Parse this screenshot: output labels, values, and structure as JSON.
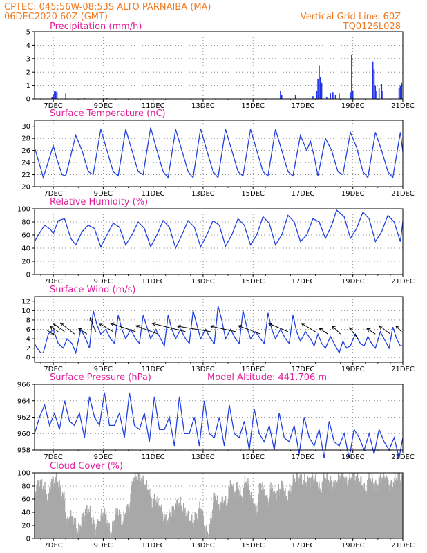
{
  "header": {
    "line1": "CPTEC:   045:56W-08:53S   ALTO PARNAIBA (MA)",
    "line2": "06DEC2020 60Z (GMT)",
    "vertical_grid": "Vertical Grid Line: 60Z",
    "code": "TQ0126L028"
  },
  "x_ticks": [
    "7DEC",
    "9DEC",
    "11DEC",
    "13DEC",
    "15DEC",
    "17DEC",
    "19DEC",
    "21DEC"
  ],
  "colors": {
    "header": "#f07820",
    "title": "#e0209a",
    "line": "#2040e0",
    "bar": "#2030e8",
    "cloud": "#a8a8a8",
    "arrow": "#000000"
  },
  "chart_data": [
    {
      "type": "bar",
      "title": "Precipitation (mm/h)",
      "ylim": [
        0,
        5
      ],
      "yticks": [
        0,
        1,
        2,
        3,
        4,
        5
      ],
      "x_range_days": [
        6.25,
        21.0
      ],
      "bars": [
        {
          "x": 6.95,
          "y": 0.15
        },
        {
          "x": 7.0,
          "y": 0.35
        },
        {
          "x": 7.05,
          "y": 0.6
        },
        {
          "x": 7.1,
          "y": 0.55
        },
        {
          "x": 7.15,
          "y": 0.5
        },
        {
          "x": 7.5,
          "y": 0.4
        },
        {
          "x": 8.25,
          "y": 0.05
        },
        {
          "x": 9.15,
          "y": 0.05
        },
        {
          "x": 16.1,
          "y": 0.6
        },
        {
          "x": 16.15,
          "y": 0.3
        },
        {
          "x": 16.7,
          "y": 0.3
        },
        {
          "x": 17.4,
          "y": 0.2
        },
        {
          "x": 17.55,
          "y": 0.6
        },
        {
          "x": 17.6,
          "y": 1.5
        },
        {
          "x": 17.65,
          "y": 2.5
        },
        {
          "x": 17.7,
          "y": 1.6
        },
        {
          "x": 17.75,
          "y": 1.2
        },
        {
          "x": 17.95,
          "y": 0.15
        },
        {
          "x": 18.1,
          "y": 0.4
        },
        {
          "x": 18.2,
          "y": 0.5
        },
        {
          "x": 18.3,
          "y": 0.3
        },
        {
          "x": 18.45,
          "y": 0.4
        },
        {
          "x": 18.9,
          "y": 0.5
        },
        {
          "x": 18.95,
          "y": 3.3
        },
        {
          "x": 19.0,
          "y": 0.6
        },
        {
          "x": 19.8,
          "y": 2.8
        },
        {
          "x": 19.85,
          "y": 2.2
        },
        {
          "x": 19.9,
          "y": 1.0
        },
        {
          "x": 19.95,
          "y": 0.6
        },
        {
          "x": 20.05,
          "y": 0.8
        },
        {
          "x": 20.15,
          "y": 1.1
        },
        {
          "x": 20.2,
          "y": 0.6
        },
        {
          "x": 20.85,
          "y": 0.8
        },
        {
          "x": 20.9,
          "y": 1.0
        },
        {
          "x": 20.95,
          "y": 1.2
        }
      ]
    },
    {
      "type": "line",
      "title": "Surface Temperature (nC)",
      "ylim": [
        20,
        31
      ],
      "yticks": [
        20,
        22,
        24,
        26,
        28,
        30
      ],
      "x_range_days": [
        6.25,
        21.0
      ],
      "x": [
        6.25,
        6.5,
        6.6,
        6.9,
        7.0,
        7.15,
        7.35,
        7.5,
        7.9,
        8.15,
        8.4,
        8.6,
        8.9,
        9.15,
        9.4,
        9.6,
        9.9,
        10.15,
        10.4,
        10.6,
        10.9,
        11.15,
        11.4,
        11.6,
        11.9,
        12.15,
        12.4,
        12.6,
        12.9,
        13.15,
        13.4,
        13.6,
        13.9,
        14.15,
        14.4,
        14.6,
        14.9,
        15.15,
        15.4,
        15.6,
        15.9,
        16.15,
        16.4,
        16.6,
        16.9,
        17.15,
        17.3,
        17.45,
        17.6,
        17.9,
        18.15,
        18.4,
        18.6,
        18.9,
        19.15,
        19.4,
        19.6,
        19.9,
        20.15,
        20.4,
        20.6,
        20.9,
        21.0
      ],
      "y": [
        26.5,
        23.0,
        21.5,
        25.5,
        26.8,
        24.5,
        22.0,
        21.8,
        28.5,
        26.0,
        22.5,
        22.0,
        29.5,
        26.0,
        22.5,
        21.8,
        29.5,
        26.0,
        22.5,
        22.0,
        29.8,
        26.0,
        22.5,
        21.5,
        29.5,
        26.0,
        22.5,
        21.5,
        29.6,
        26.0,
        22.5,
        21.5,
        29.5,
        26.0,
        22.5,
        21.8,
        29.5,
        26.0,
        22.5,
        21.8,
        29.5,
        26.0,
        22.5,
        21.8,
        28.5,
        26.0,
        27.5,
        25.0,
        21.8,
        28.0,
        26.0,
        22.5,
        22.0,
        29.0,
        26.5,
        22.5,
        21.5,
        29.0,
        26.0,
        22.5,
        21.5,
        29.0,
        25.8
      ]
    },
    {
      "type": "line",
      "title": "Relative Humidity (%)",
      "ylim": [
        0,
        100
      ],
      "yticks": [
        0,
        20,
        40,
        60,
        80,
        100
      ],
      "x_range_days": [
        6.25,
        21.0
      ],
      "x": [
        6.25,
        6.4,
        6.65,
        6.9,
        7.0,
        7.2,
        7.45,
        7.7,
        7.9,
        8.15,
        8.4,
        8.65,
        8.9,
        9.15,
        9.4,
        9.65,
        9.9,
        10.15,
        10.4,
        10.65,
        10.9,
        11.15,
        11.4,
        11.65,
        11.9,
        12.15,
        12.4,
        12.65,
        12.9,
        13.15,
        13.4,
        13.65,
        13.9,
        14.15,
        14.4,
        14.65,
        14.9,
        15.15,
        15.4,
        15.65,
        15.9,
        16.15,
        16.4,
        16.65,
        16.9,
        17.15,
        17.4,
        17.65,
        17.9,
        18.15,
        18.35,
        18.65,
        18.9,
        19.15,
        19.4,
        19.65,
        19.9,
        20.15,
        20.4,
        20.65,
        20.9,
        21.0
      ],
      "y": [
        50,
        60,
        75,
        68,
        62,
        82,
        85,
        55,
        45,
        65,
        75,
        70,
        42,
        60,
        78,
        72,
        45,
        60,
        80,
        70,
        42,
        60,
        82,
        72,
        40,
        60,
        82,
        72,
        42,
        60,
        82,
        75,
        43,
        60,
        85,
        75,
        45,
        60,
        88,
        78,
        45,
        60,
        90,
        80,
        50,
        60,
        85,
        80,
        55,
        75,
        98,
        88,
        55,
        70,
        95,
        85,
        50,
        65,
        90,
        80,
        50,
        80
      ]
    },
    {
      "type": "line",
      "title": "Surface Wind (m/s)",
      "ylim": [
        -1,
        13
      ],
      "yticks": [
        0,
        2,
        4,
        6,
        8,
        10,
        12
      ],
      "x_range_days": [
        6.25,
        21.0
      ],
      "x": [
        6.25,
        6.35,
        6.5,
        6.6,
        6.8,
        7.0,
        7.2,
        7.4,
        7.55,
        7.75,
        7.9,
        8.1,
        8.3,
        8.45,
        8.6,
        8.75,
        8.9,
        9.1,
        9.3,
        9.45,
        9.6,
        9.75,
        9.9,
        10.1,
        10.3,
        10.45,
        10.6,
        10.75,
        10.9,
        11.1,
        11.3,
        11.45,
        11.6,
        11.75,
        11.9,
        12.1,
        12.3,
        12.45,
        12.6,
        12.75,
        12.9,
        13.1,
        13.3,
        13.45,
        13.6,
        13.75,
        13.9,
        14.1,
        14.3,
        14.45,
        14.6,
        14.75,
        14.9,
        15.1,
        15.3,
        15.45,
        15.6,
        15.75,
        15.9,
        16.1,
        16.3,
        16.45,
        16.6,
        16.75,
        16.9,
        17.1,
        17.3,
        17.45,
        17.6,
        17.75,
        17.9,
        18.1,
        18.3,
        18.45,
        18.6,
        18.75,
        18.9,
        19.1,
        19.3,
        19.45,
        19.6,
        19.75,
        19.9,
        20.1,
        20.3,
        20.45,
        20.6,
        20.75,
        20.9,
        21.0
      ],
      "y": [
        3.0,
        2.0,
        1.0,
        1.0,
        5.0,
        6.0,
        3.0,
        2.0,
        4.0,
        3.0,
        1.0,
        6.0,
        4.0,
        2.0,
        10.0,
        7.0,
        5.0,
        6.0,
        4.0,
        3.0,
        9.0,
        6.0,
        4.0,
        6.0,
        4.0,
        3.0,
        9.0,
        6.5,
        4.0,
        6.0,
        4.0,
        2.5,
        9.0,
        6.0,
        4.0,
        6.0,
        4.0,
        3.0,
        10.0,
        7.0,
        4.0,
        6.0,
        4.0,
        3.0,
        11.0,
        8.0,
        4.0,
        6.0,
        4.0,
        3.0,
        10.0,
        6.5,
        4.0,
        5.5,
        4.0,
        3.0,
        9.5,
        6.0,
        4.0,
        6.0,
        4.0,
        3.0,
        9.0,
        5.5,
        3.5,
        5.5,
        4.0,
        2.5,
        5.0,
        3.0,
        2.0,
        4.5,
        2.5,
        1.0,
        3.5,
        2.0,
        2.5,
        5.0,
        3.0,
        2.5,
        4.5,
        3.0,
        2.0,
        5.5,
        3.5,
        2.0,
        6.5,
        4.0,
        2.5,
        2.5
      ],
      "arrows": [
        {
          "x": 6.7,
          "y": 6.0,
          "u": 0.3,
          "v": -0.2
        },
        {
          "x": 7.2,
          "y": 5.5,
          "u": -0.3,
          "v": 0.2
        },
        {
          "x": 7.45,
          "y": 5.5,
          "u": -0.4,
          "v": 0.3
        },
        {
          "x": 7.85,
          "y": 5.0,
          "u": -0.5,
          "v": 0.4
        },
        {
          "x": 8.35,
          "y": 5.0,
          "u": -0.3,
          "v": 0.2
        },
        {
          "x": 8.7,
          "y": 5.5,
          "u": -0.2,
          "v": 0.5
        },
        {
          "x": 9.4,
          "y": 5.5,
          "u": -0.5,
          "v": 0.3
        },
        {
          "x": 10.3,
          "y": 5.5,
          "u": -0.9,
          "v": 0.3
        },
        {
          "x": 11.2,
          "y": 5.0,
          "u": -0.8,
          "v": 0.3
        },
        {
          "x": 12.3,
          "y": 5.5,
          "u": -1.2,
          "v": 0.3
        },
        {
          "x": 13.3,
          "y": 5.5,
          "u": -1.2,
          "v": 0.2
        },
        {
          "x": 14.3,
          "y": 5.5,
          "u": -0.9,
          "v": 0.2
        },
        {
          "x": 15.3,
          "y": 5.0,
          "u": -0.8,
          "v": 0.3
        },
        {
          "x": 16.4,
          "y": 5.5,
          "u": -0.7,
          "v": 0.3
        },
        {
          "x": 17.5,
          "y": 5.5,
          "u": -0.5,
          "v": 0.3
        },
        {
          "x": 18.0,
          "y": 5.0,
          "u": -0.3,
          "v": 0.2
        },
        {
          "x": 18.5,
          "y": 5.0,
          "u": -0.3,
          "v": 0.3
        },
        {
          "x": 19.2,
          "y": 4.0,
          "u": -0.3,
          "v": 0.4
        },
        {
          "x": 19.9,
          "y": 5.0,
          "u": -0.3,
          "v": 0.2
        },
        {
          "x": 20.5,
          "y": 5.0,
          "u": -0.4,
          "v": 0.3
        },
        {
          "x": 20.95,
          "y": 5.5,
          "u": -0.2,
          "v": 0.2
        }
      ]
    },
    {
      "type": "line",
      "title": "Surface Pressure (hPa)",
      "annotation": "Model Altitude: 441.706  m",
      "ylim": [
        958,
        966
      ],
      "yticks": [
        958,
        960,
        962,
        964,
        966
      ],
      "x_range_days": [
        6.25,
        21.0
      ],
      "x": [
        6.25,
        6.45,
        6.65,
        6.85,
        7.05,
        7.25,
        7.45,
        7.65,
        7.85,
        8.05,
        8.25,
        8.45,
        8.65,
        8.85,
        9.05,
        9.25,
        9.45,
        9.65,
        9.85,
        10.05,
        10.25,
        10.45,
        10.65,
        10.85,
        11.05,
        11.25,
        11.45,
        11.65,
        11.85,
        12.05,
        12.25,
        12.45,
        12.65,
        12.85,
        13.05,
        13.25,
        13.45,
        13.65,
        13.85,
        14.05,
        14.25,
        14.45,
        14.65,
        14.85,
        15.05,
        15.25,
        15.45,
        15.65,
        15.85,
        16.05,
        16.25,
        16.45,
        16.65,
        16.85,
        17.05,
        17.25,
        17.45,
        17.65,
        17.85,
        18.05,
        18.25,
        18.45,
        18.65,
        18.85,
        19.05,
        19.25,
        19.45,
        19.65,
        19.85,
        20.05,
        20.25,
        20.45,
        20.65,
        20.85,
        21.0
      ],
      "y": [
        960.0,
        962.0,
        963.5,
        961.0,
        962.5,
        960.5,
        964.0,
        961.5,
        961.0,
        962.5,
        959.5,
        964.5,
        962.0,
        961.0,
        965.0,
        961.0,
        961.0,
        962.5,
        959.5,
        965.0,
        961.0,
        960.5,
        962.5,
        959.0,
        964.5,
        960.5,
        960.5,
        962.0,
        958.5,
        964.5,
        960.0,
        960.0,
        962.0,
        958.5,
        964.0,
        960.0,
        959.5,
        962.0,
        958.5,
        963.5,
        960.0,
        959.5,
        961.5,
        958.0,
        963.0,
        960.0,
        959.0,
        961.0,
        958.0,
        962.5,
        959.5,
        959.0,
        961.0,
        957.5,
        962.0,
        959.5,
        958.5,
        960.5,
        957.0,
        961.5,
        959.0,
        958.5,
        960.0,
        957.0,
        960.5,
        959.5,
        958.0,
        960.0,
        957.5,
        960.5,
        959.0,
        958.0,
        959.5,
        957.0,
        959.5
      ]
    },
    {
      "type": "bar",
      "title": "Cloud Cover (%)",
      "ylim": [
        0,
        100
      ],
      "yticks": [
        0,
        20,
        40,
        60,
        80,
        100
      ],
      "x_range_days": [
        6.25,
        21.0
      ],
      "profile_x": [
        6.25,
        6.4,
        6.6,
        6.8,
        6.9,
        7.0,
        7.15,
        7.3,
        7.45,
        7.55,
        7.65,
        7.8,
        8.0,
        8.2,
        8.4,
        8.55,
        8.7,
        8.85,
        9.0,
        9.15,
        9.3,
        9.45,
        9.6,
        9.75,
        9.9,
        10.05,
        10.2,
        10.35,
        10.5,
        10.65,
        10.8,
        10.95,
        11.1,
        11.25,
        11.4,
        11.55,
        11.7,
        11.85,
        12.0,
        12.15,
        12.3,
        12.45,
        12.6,
        12.75,
        12.9,
        13.05,
        13.2,
        13.35,
        13.5,
        13.65,
        13.8,
        13.95,
        14.1,
        14.25,
        14.4,
        14.55,
        14.7,
        14.85,
        15.0,
        15.15,
        15.3,
        15.45,
        15.6,
        15.75,
        15.9,
        16.05,
        16.2,
        16.35,
        16.5,
        16.65,
        16.8,
        16.95,
        17.1,
        17.25,
        17.4,
        17.55,
        17.7,
        17.85,
        18.0,
        18.15,
        18.3,
        18.45,
        18.6,
        18.75,
        18.9,
        19.05,
        19.2,
        19.35,
        19.5,
        19.65,
        19.8,
        19.95,
        20.1,
        20.25,
        20.4,
        20.55,
        20.7,
        20.85,
        21.0
      ],
      "profile_y": [
        70,
        85,
        80,
        60,
        85,
        88,
        90,
        75,
        60,
        20,
        35,
        30,
        10,
        35,
        45,
        30,
        15,
        25,
        40,
        30,
        5,
        30,
        45,
        20,
        40,
        50,
        90,
        95,
        92,
        85,
        75,
        55,
        60,
        50,
        35,
        25,
        40,
        45,
        55,
        50,
        40,
        30,
        25,
        35,
        50,
        20,
        5,
        35,
        70,
        45,
        60,
        50,
        85,
        70,
        80,
        60,
        90,
        75,
        55,
        40,
        85,
        70,
        55,
        80,
        65,
        75,
        80,
        60,
        75,
        90,
        95,
        90,
        85,
        88,
        92,
        90,
        70,
        95,
        90,
        85,
        80,
        95,
        98,
        85,
        92,
        95,
        90,
        85,
        70,
        95,
        85,
        80,
        90,
        95,
        85,
        80,
        90,
        95,
        95
      ]
    }
  ]
}
